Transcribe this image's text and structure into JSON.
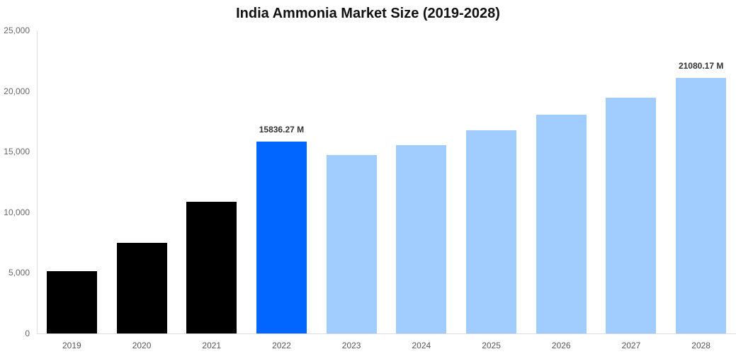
{
  "chart_data": {
    "type": "bar",
    "title": "India Ammonia Market Size (2019-2028)",
    "xlabel": "",
    "ylabel": "",
    "ylim": [
      0,
      25000
    ],
    "yticks": [
      "0",
      "5,000",
      "10,000",
      "15,000",
      "20,000",
      "25,000"
    ],
    "categories": [
      "2019",
      "2020",
      "2021",
      "2022",
      "2023",
      "2024",
      "2025",
      "2026",
      "2027",
      "2028"
    ],
    "values": [
      5140,
      7480,
      10870,
      15836.27,
      14720,
      15540,
      16770,
      18050,
      19450,
      21080.17
    ],
    "colors": [
      "#000000",
      "#000000",
      "#000000",
      "#0066ff",
      "#a0cdfd",
      "#a0cdfd",
      "#a0cdfd",
      "#a0cdfd",
      "#a0cdfd",
      "#a0cdfd"
    ],
    "annotations": [
      {
        "category": "2022",
        "label": "15836.27 M"
      },
      {
        "category": "2028",
        "label": "21080.17 M"
      }
    ],
    "grid": false,
    "legend": "none"
  }
}
